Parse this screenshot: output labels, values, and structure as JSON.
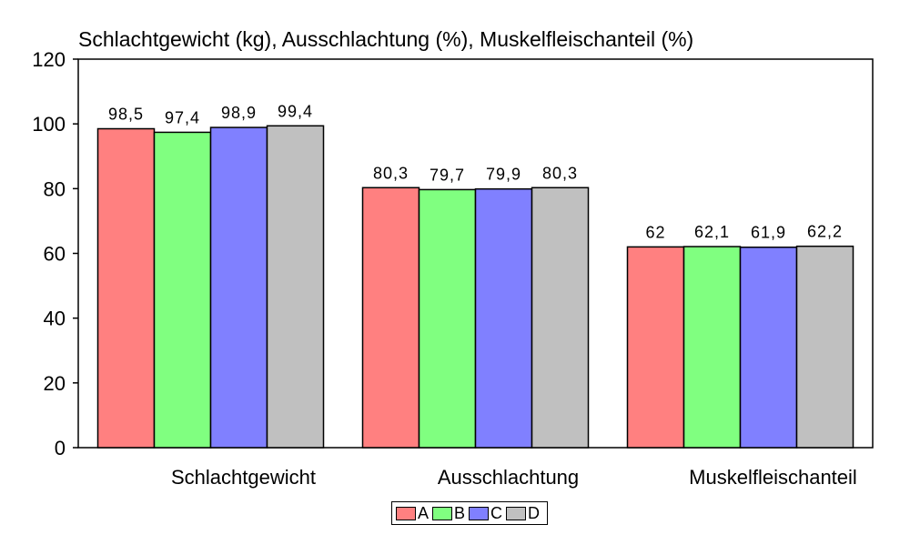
{
  "chart_data": {
    "type": "bar",
    "title": "Schlachtgewicht (kg), Ausschlachtung (%), Muskelfleischanteil (%)",
    "categories": [
      "Schlachtgewicht",
      "Ausschlachtung",
      "Muskelfleischanteil"
    ],
    "series": [
      {
        "name": "A",
        "color": "#ff8080",
        "values": [
          98.5,
          80.3,
          62.0
        ],
        "labels": [
          "98,5",
          "80,3",
          "62"
        ]
      },
      {
        "name": "B",
        "color": "#80ff80",
        "values": [
          97.4,
          79.7,
          62.1
        ],
        "labels": [
          "97,4",
          "79,7",
          "62,1"
        ]
      },
      {
        "name": "C",
        "color": "#8080ff",
        "values": [
          98.9,
          79.9,
          61.9
        ],
        "labels": [
          "98,9",
          "79,9",
          "61,9"
        ]
      },
      {
        "name": "D",
        "color": "#c0c0c0",
        "values": [
          99.4,
          80.3,
          62.2
        ],
        "labels": [
          "99,4",
          "80,3",
          "62,2"
        ]
      }
    ],
    "ylim": [
      0,
      120
    ],
    "yticks": [
      "0",
      "20",
      "40",
      "60",
      "80",
      "100",
      "120"
    ],
    "xlabel": "",
    "ylabel": "",
    "grid": false,
    "legend_position": "bottom-center"
  }
}
